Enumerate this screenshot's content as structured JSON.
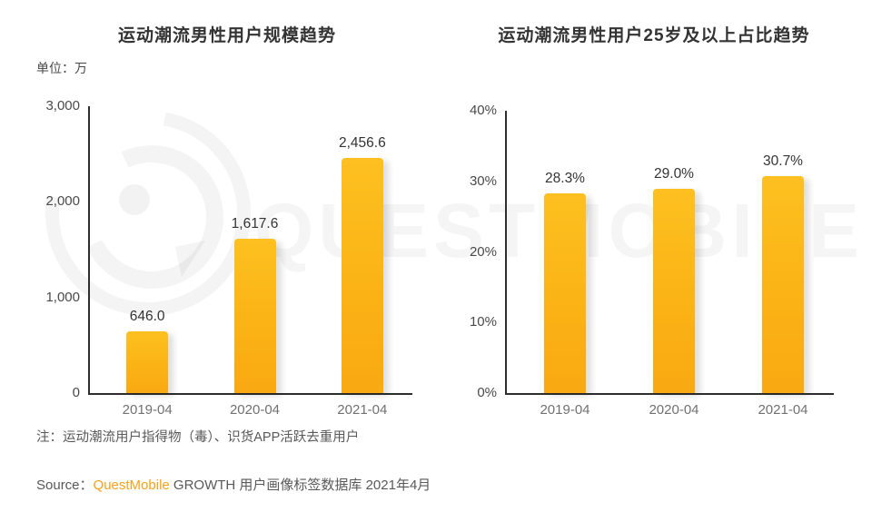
{
  "watermark": {
    "text": "QUESTMOBILE"
  },
  "footer": {
    "note": "注：运动潮流用户指得物（毒）、识货APP活跃去重用户",
    "source_prefix": "Source：",
    "source_brand": "QuestMobile",
    "source_suffix": " GROWTH 用户画像标签数据库 2021年4月"
  },
  "colors": {
    "bar": "#FBB315",
    "brand_orange": "#F7A21B",
    "axis": "#2e2e2e",
    "title_text": "#333333",
    "tick_text": "#4a4a4a",
    "category_text": "#717171",
    "note_text": "#595959"
  },
  "chart_data": [
    {
      "type": "bar",
      "title": "运动潮流男性用户规模趋势",
      "unit_label": "单位：万",
      "categories": [
        "2019-04",
        "2020-04",
        "2021-04"
      ],
      "values": [
        646.0,
        1617.6,
        2456.6
      ],
      "value_labels": [
        "646.0",
        "1,617.6",
        "2,456.6"
      ],
      "ylim": [
        0,
        3000
      ],
      "yticks": [
        "0",
        "1,000",
        "2,000",
        "3,000"
      ],
      "grid": false,
      "legend_position": "none"
    },
    {
      "type": "bar",
      "title": "运动潮流男性用户25岁及以上占比趋势",
      "unit_label": "",
      "categories": [
        "2019-04",
        "2020-04",
        "2021-04"
      ],
      "values": [
        28.3,
        29.0,
        30.7
      ],
      "value_labels": [
        "28.3%",
        "29.0%",
        "30.7%"
      ],
      "ylim": [
        0,
        40
      ],
      "yticks": [
        "0%",
        "10%",
        "20%",
        "30%",
        "40%"
      ],
      "grid": false,
      "legend_position": "none"
    }
  ]
}
